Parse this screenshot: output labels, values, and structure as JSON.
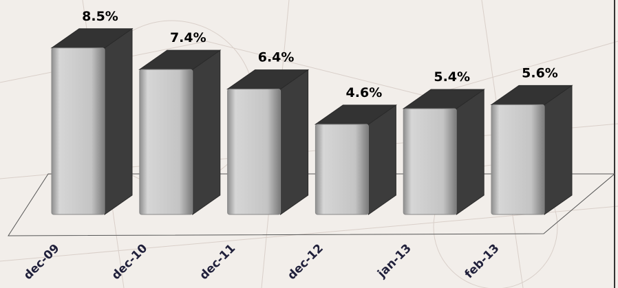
{
  "chart_data": {
    "type": "bar3d",
    "categories": [
      "dec-09",
      "dec-10",
      "dec-11",
      "dec-12",
      "jan-13",
      "feb-13"
    ],
    "values": [
      8.5,
      7.4,
      6.4,
      4.6,
      5.4,
      5.6
    ],
    "value_labels": [
      "8.5%",
      "7.4%",
      "6.4%",
      "4.6%",
      "5.4%",
      "5.6%"
    ],
    "color": "#c8c8c8",
    "ylim": [
      0,
      10
    ]
  }
}
